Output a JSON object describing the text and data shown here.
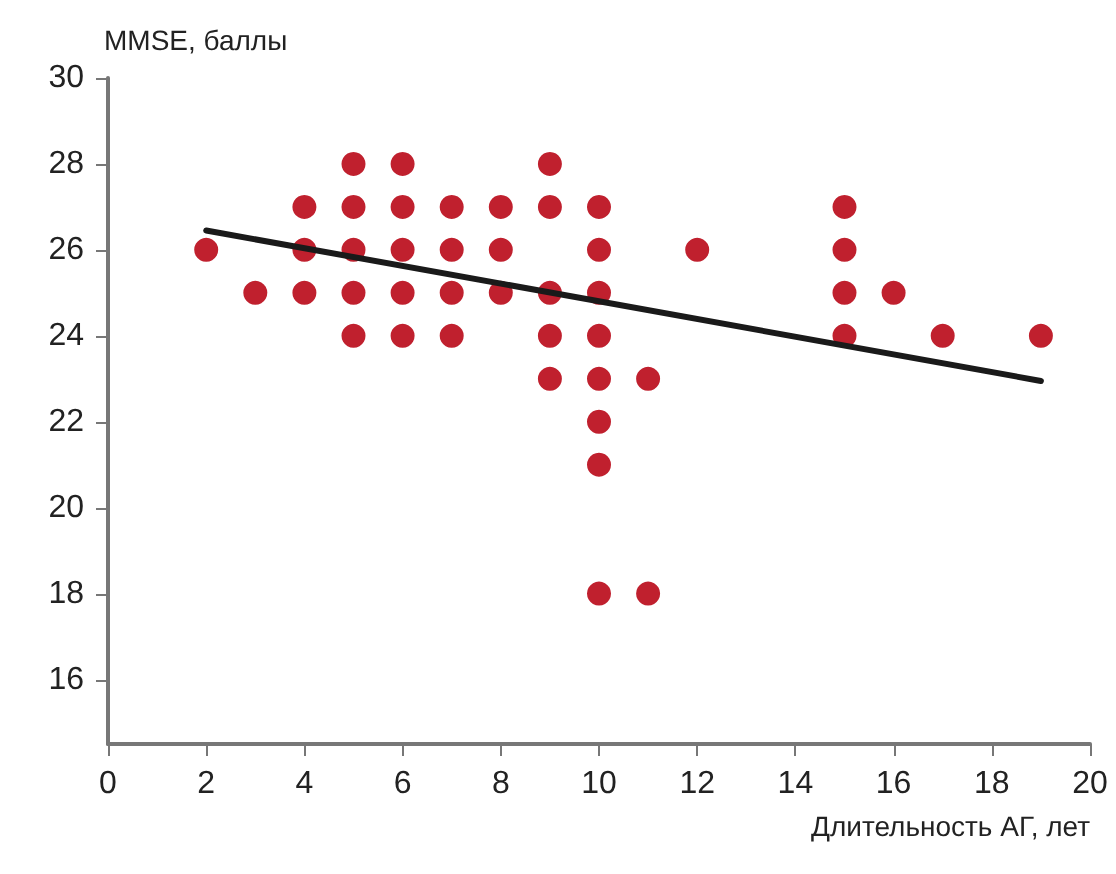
{
  "chart_data": {
    "type": "scatter",
    "xlabel": "Длительность АГ, лет",
    "ylabel": "MMSE, баллы",
    "xlim": [
      0,
      20
    ],
    "xticks": [
      0,
      2,
      4,
      6,
      8,
      10,
      12,
      14,
      16,
      18,
      20
    ],
    "ylim": [
      14.5,
      30
    ],
    "yticks": [
      16,
      18,
      20,
      22,
      24,
      26,
      28,
      30
    ],
    "grid": false,
    "marker": "circle",
    "series": [
      {
        "color": "#c0202e",
        "x": [
          2,
          3,
          4,
          4,
          4,
          5,
          5,
          5,
          5,
          5,
          6,
          6,
          6,
          6,
          6,
          7,
          7,
          7,
          7,
          8,
          8,
          8,
          9,
          9,
          9,
          9,
          9,
          10,
          10,
          10,
          10,
          10,
          10,
          10,
          10,
          11,
          11,
          12,
          15,
          15,
          15,
          15,
          16,
          17,
          19
        ],
        "values": [
          26,
          25,
          27,
          26,
          25,
          28,
          27,
          26,
          25,
          24,
          28,
          27,
          26,
          25,
          24,
          27,
          26,
          25,
          24,
          27,
          26,
          25,
          28,
          27,
          25,
          24,
          23,
          27,
          26,
          25,
          24,
          23,
          22,
          21,
          18,
          23,
          18,
          26,
          27,
          26,
          25,
          24,
          25,
          24,
          24
        ]
      },
      {
        "type": "line",
        "color": "#1a1a1a",
        "marker": "none",
        "line_style": "solid",
        "x": [
          2,
          19
        ],
        "values": [
          26.45,
          22.95
        ]
      }
    ]
  }
}
